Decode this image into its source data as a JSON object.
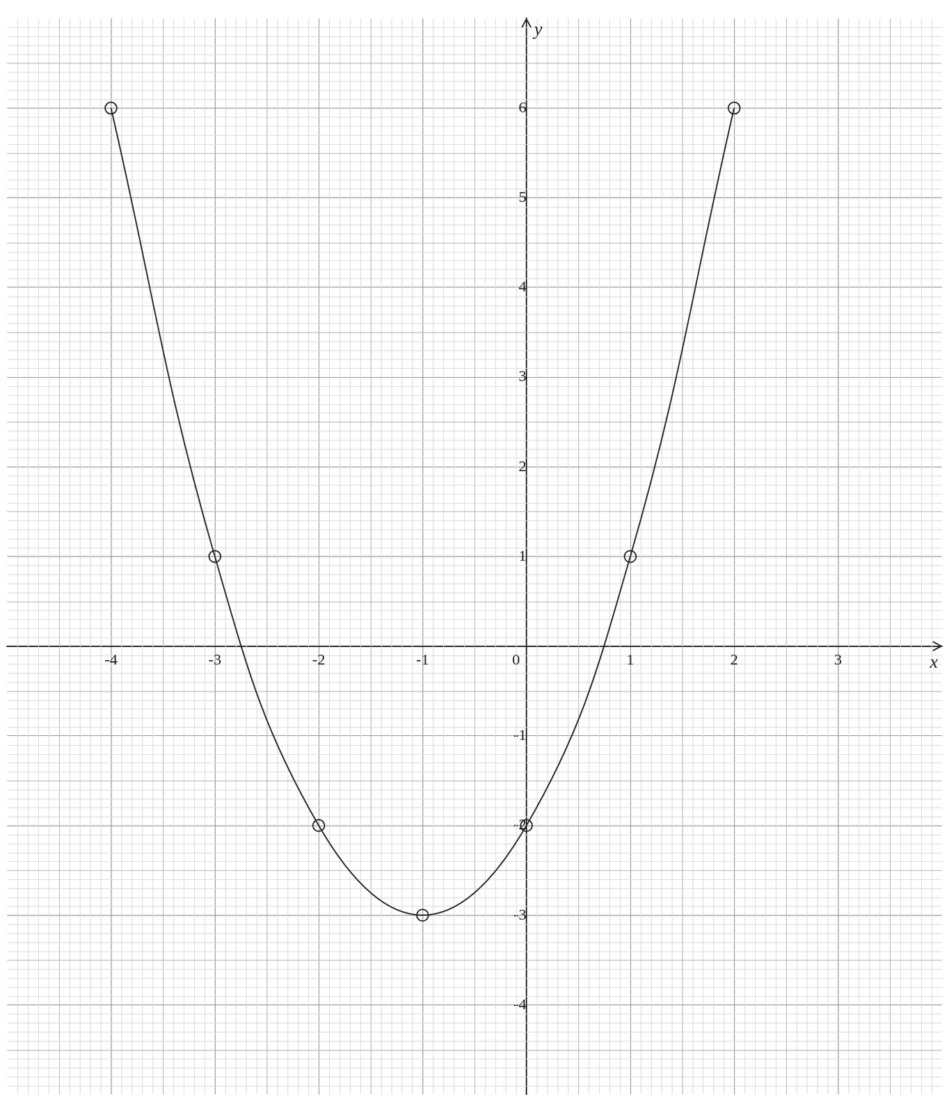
{
  "chart_data": {
    "type": "line",
    "x": [
      -4,
      -3,
      -2,
      -1,
      0,
      1,
      2
    ],
    "values": [
      6,
      1,
      -2,
      -3,
      -2,
      1,
      6
    ],
    "color": "#222222",
    "marker": "circle",
    "line_style": "solid",
    "x_label": "x",
    "y_label": "y",
    "xlim": [
      -5,
      4
    ],
    "ylim": [
      -5,
      7
    ],
    "xticks": [
      -4,
      -3,
      -2,
      -1,
      0,
      1,
      2,
      3
    ],
    "yticks": [
      -4,
      -3,
      -2,
      -1,
      1,
      2,
      3,
      4,
      5,
      6
    ],
    "grid": true
  }
}
